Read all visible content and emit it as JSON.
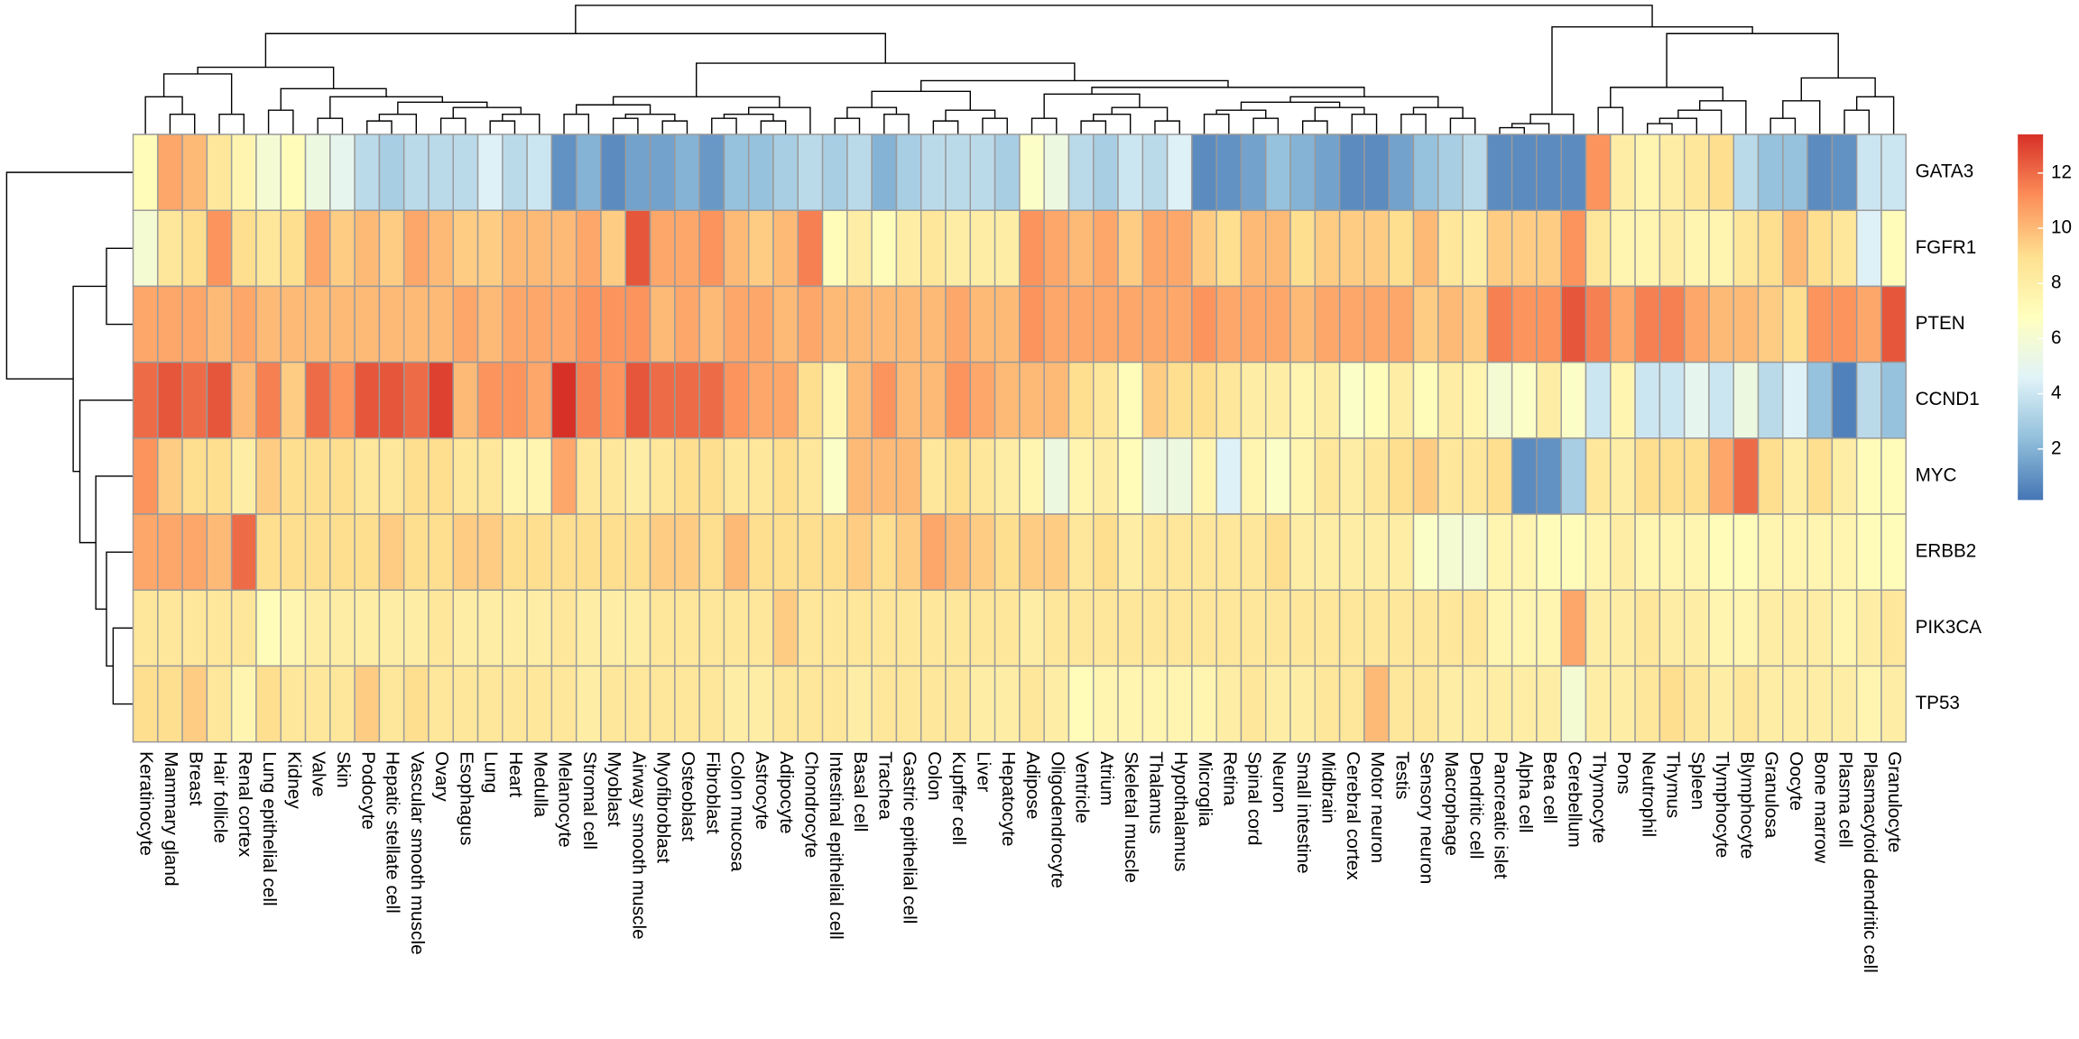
{
  "chart_data": {
    "type": "heatmap",
    "rows": [
      "GATA3",
      "FGFR1",
      "PTEN",
      "CCND1",
      "MYC",
      "ERBB2",
      "PIK3CA",
      "TP53"
    ],
    "columns": [
      "Keratinocyte",
      "Mammary gland",
      "Breast",
      "Hair follicle",
      "Renal cortex",
      "Lung epithelial cell",
      "Kidney",
      "Valve",
      "Skin",
      "Podocyte",
      "Hepatic stellate cell",
      "Vascular smooth muscle",
      "Ovary",
      "Esophagus",
      "Lung",
      "Heart",
      "Medulla",
      "Melanocyte",
      "Stromal cell",
      "Myoblast",
      "Airway smooth muscle",
      "Myofibroblast",
      "Osteoblast",
      "Fibroblast",
      "Colon mucosa",
      "Astrocyte",
      "Adipocyte",
      "Chondrocyte",
      "Intestinal epithelial cell",
      "Basal cell",
      "Trachea",
      "Gastric epithelial cell",
      "Colon",
      "Kupffer cell",
      "Liver",
      "Hepatocyte",
      "Adipose",
      "Oligodendrocyte",
      "Ventricle",
      "Atrium",
      "Skeletal muscle",
      "Thalamus",
      "Hypothalamus",
      "Microglia",
      "Retina",
      "Spinal cord",
      "Neuron",
      "Small intestine",
      "Midbrain",
      "Cerebral cortex",
      "Motor neuron",
      "Testis",
      "Sensory neuron",
      "Macrophage",
      "Dendritic cell",
      "Pancreatic islet",
      "Alpha cell",
      "Beta cell",
      "Cerebellum",
      "Thymocyte",
      "Pons",
      "Neutrophil",
      "Thymus",
      "Spleen",
      "Tlymphocyte",
      "Blymphocyte",
      "Granulosa",
      "Oocyte",
      "Bone marrow",
      "Plasma cell",
      "Plasmacytoid dendritic cell",
      "Granulocyte"
    ],
    "values": [
      [
        7,
        10.5,
        10,
        8.5,
        7.5,
        6,
        7,
        5.5,
        5,
        3.5,
        3,
        3.5,
        3.5,
        3.5,
        4.5,
        3.5,
        4,
        1,
        2,
        0.8,
        1.5,
        1.5,
        2,
        1.2,
        2.5,
        2.5,
        3,
        3.5,
        3,
        3.5,
        2,
        3,
        3.5,
        3.5,
        3.5,
        3,
        6.5,
        5.5,
        3.5,
        3,
        4,
        3.5,
        4.5,
        0.8,
        1,
        1.5,
        2.5,
        2,
        1.5,
        0.8,
        0.8,
        1.5,
        2.5,
        3,
        3.5,
        0.8,
        0.8,
        0.8,
        0.8,
        11,
        8,
        7.5,
        8,
        8.5,
        9,
        3.5,
        2.5,
        2.5,
        0.8,
        1,
        4,
        4
      ],
      [
        6,
        8.5,
        9,
        11,
        9,
        8.5,
        9,
        10.5,
        9.5,
        10,
        9.5,
        10.5,
        10,
        9.5,
        9.5,
        10,
        10,
        10,
        10.5,
        9.5,
        12.5,
        10.5,
        10.5,
        11,
        10,
        9.5,
        10,
        11.5,
        7,
        8,
        7,
        8,
        8.5,
        8,
        8,
        8,
        11,
        10.5,
        10,
        10.5,
        9.5,
        10.5,
        10.5,
        9.5,
        9,
        10,
        10,
        9,
        9.5,
        9.5,
        9.5,
        9,
        10,
        8.5,
        8,
        9.5,
        9.5,
        9.5,
        11,
        8.5,
        7.5,
        7.5,
        8,
        7.5,
        7.5,
        8.5,
        9,
        10,
        9,
        8.5,
        4.5,
        7
      ],
      [
        10.5,
        10.5,
        10.5,
        10,
        10.5,
        10,
        10,
        10,
        10,
        10,
        10,
        10,
        10,
        10.5,
        10,
        10.5,
        10.5,
        10.5,
        11,
        11,
        11,
        10,
        10.5,
        10,
        10.5,
        10.5,
        10,
        10.5,
        10,
        10,
        10,
        10,
        10,
        10.5,
        10,
        10,
        11,
        10.5,
        10.5,
        10.5,
        10.5,
        10.5,
        10.5,
        11,
        10.5,
        10.5,
        10.5,
        10,
        10.5,
        10.5,
        10.5,
        10.5,
        9.5,
        10,
        9.5,
        11.5,
        11,
        11,
        12.5,
        11.5,
        10.5,
        11.5,
        11.5,
        10.5,
        10,
        10,
        9.5,
        9,
        11,
        11,
        10.5,
        12.5
      ],
      [
        12,
        12.5,
        12,
        12.5,
        10,
        11.5,
        9.5,
        12,
        11,
        12.5,
        12.5,
        12,
        13,
        10,
        11,
        11,
        10.5,
        13.4,
        11.5,
        11,
        12.5,
        12,
        12,
        12,
        11,
        10.5,
        10.5,
        9,
        7.5,
        10,
        11,
        10,
        10,
        11,
        10.5,
        10,
        10,
        10,
        9,
        8.5,
        7,
        9.5,
        9,
        9,
        8.5,
        8,
        8,
        7.5,
        8,
        6.5,
        7,
        8,
        7,
        8,
        7.5,
        6,
        6.5,
        8,
        6.5,
        4,
        7.5,
        4,
        4,
        5,
        4,
        5.5,
        3.5,
        4.5,
        2.5,
        0.5,
        3.5,
        2.5
      ],
      [
        11,
        9.5,
        9,
        9,
        8,
        9.5,
        9,
        9,
        9,
        8.5,
        8.5,
        9,
        9,
        8.5,
        8.5,
        7.5,
        7.5,
        10.5,
        8.5,
        8.5,
        8,
        8.5,
        9,
        9,
        8.5,
        8.5,
        9,
        8.5,
        6.5,
        10,
        10,
        10,
        8.5,
        9,
        8.5,
        8,
        7.5,
        5.5,
        7.5,
        8,
        7,
        5.5,
        5.5,
        7.5,
        4.5,
        7.5,
        6.5,
        7.5,
        8.5,
        8,
        8.5,
        9,
        9.5,
        8.5,
        8.5,
        9,
        0.8,
        1,
        3,
        8.5,
        8,
        9,
        9,
        9,
        10.5,
        12,
        9,
        8,
        9,
        8,
        7,
        7
      ],
      [
        10.5,
        10.5,
        10.5,
        10,
        12,
        9,
        9,
        9,
        9,
        9,
        9.5,
        9,
        9,
        9.5,
        9.5,
        9,
        9,
        9,
        9,
        9,
        9,
        9.5,
        9.5,
        9,
        10,
        9,
        9,
        9,
        9,
        9.5,
        9,
        9.5,
        10.5,
        10,
        9.5,
        9,
        9.5,
        9.5,
        8.5,
        9,
        8,
        8.5,
        8.5,
        8.5,
        8.5,
        8.5,
        9,
        8,
        8,
        8,
        8,
        8,
        6.5,
        6,
        6,
        7.5,
        7.5,
        7,
        7,
        7.5,
        8,
        7.5,
        7.5,
        7.5,
        7,
        7,
        7.5,
        7.5,
        7.5,
        7.5,
        7,
        7
      ],
      [
        8.5,
        8.5,
        8.5,
        8.5,
        8.5,
        7,
        7.5,
        8,
        8,
        8,
        8,
        8,
        8.5,
        8,
        8,
        8,
        8,
        8.5,
        8,
        8,
        8,
        8.5,
        8.5,
        8.5,
        8.5,
        8.5,
        9.5,
        8.5,
        8.5,
        8.5,
        8.5,
        8.5,
        8.5,
        8.5,
        8.5,
        8.5,
        8,
        8.5,
        8.5,
        8.5,
        8.5,
        8.5,
        8.5,
        8.5,
        8.5,
        8.5,
        8.5,
        8.5,
        8.5,
        8.5,
        8.5,
        8.5,
        8.5,
        8.5,
        8.5,
        7.5,
        7.5,
        7.5,
        10.5,
        8,
        8,
        8.5,
        8,
        8,
        7.5,
        7.5,
        8,
        8,
        8,
        7.5,
        8,
        8.5
      ],
      [
        9,
        9,
        9.5,
        8.5,
        7.5,
        9,
        8.5,
        8.5,
        8.5,
        9.5,
        8.5,
        9,
        8.5,
        8.5,
        8.5,
        8.5,
        8.5,
        8.5,
        8,
        8.5,
        8.5,
        8.5,
        8.5,
        8.5,
        8,
        8,
        8.5,
        8.5,
        8.5,
        8,
        8.5,
        8.5,
        8.5,
        8.5,
        8,
        8,
        8.5,
        8,
        7,
        7.5,
        7.5,
        7.5,
        7.5,
        7.5,
        8,
        8.5,
        8,
        8,
        8.5,
        8.5,
        10,
        8.5,
        8.5,
        8,
        8,
        8,
        8,
        8,
        6,
        8,
        8,
        8.5,
        9,
        8.5,
        8,
        8.5,
        8,
        8,
        8,
        8,
        7.5,
        8
      ]
    ],
    "colors": [
      "#4575b4",
      "#91bfdb",
      "#e0f3f8",
      "#ffffbf",
      "#fee090",
      "#fc8d59",
      "#d73027"
    ],
    "zlim": [
      0.15,
      13.4
    ],
    "zticks": [
      2,
      4,
      6,
      8,
      10,
      12
    ]
  }
}
